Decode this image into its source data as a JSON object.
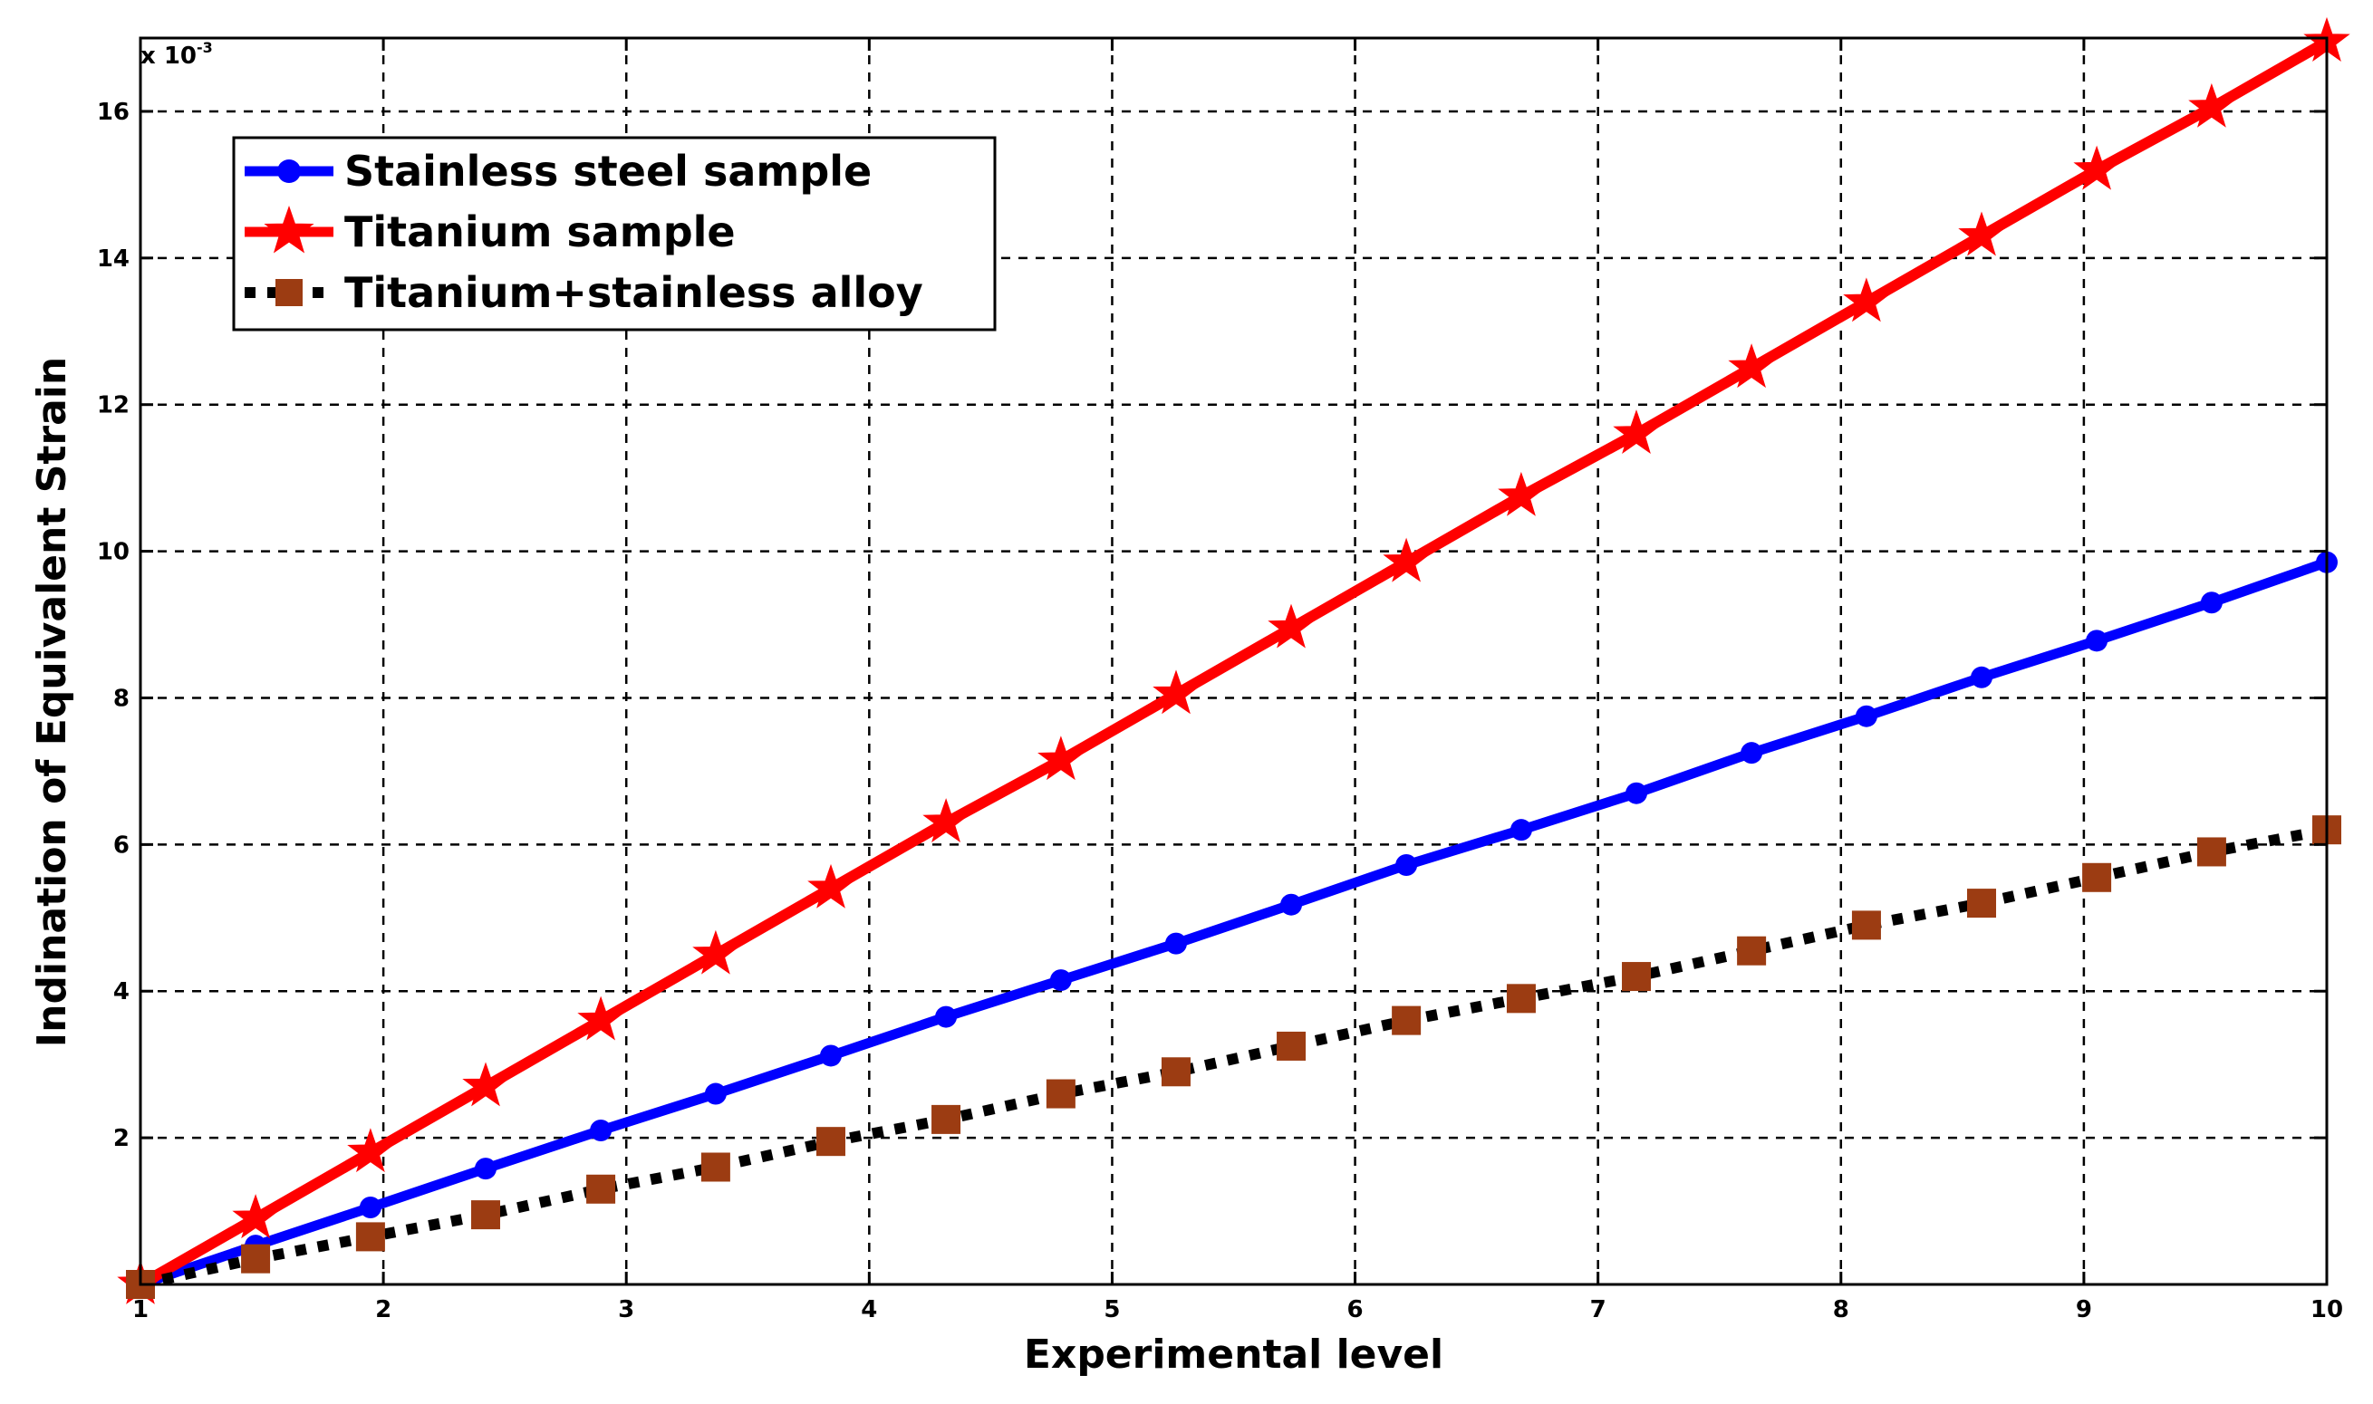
{
  "chart_data": {
    "type": "line",
    "title": "",
    "xlabel": "Experimental level",
    "ylabel": "Indination of Equivalent Strain",
    "y_multiplier": "x 10",
    "y_multiplier_exponent": "-3",
    "xlim": [
      1,
      10
    ],
    "ylim": [
      0,
      17
    ],
    "xticks": [
      1,
      2,
      3,
      4,
      5,
      6,
      7,
      8,
      9,
      10
    ],
    "yticks": [
      2,
      4,
      6,
      8,
      10,
      12,
      14,
      16
    ],
    "grid": true,
    "legend_position": "top-left",
    "series": [
      {
        "name": "Stainless steel sample",
        "color": "#0000ff",
        "marker": "circle",
        "line_style": "solid",
        "x": [
          1,
          1.474,
          1.947,
          2.421,
          2.895,
          3.368,
          3.842,
          4.316,
          4.789,
          5.263,
          5.737,
          6.211,
          6.684,
          7.158,
          7.632,
          8.105,
          8.579,
          9.053,
          9.526,
          10
        ],
        "y": [
          0,
          0.53,
          1.05,
          1.58,
          2.1,
          2.6,
          3.12,
          3.65,
          4.15,
          4.65,
          5.18,
          5.72,
          6.2,
          6.7,
          7.25,
          7.75,
          8.28,
          8.78,
          9.3,
          9.85
        ]
      },
      {
        "name": "Titanium sample",
        "color": "#ff0000",
        "marker": "star",
        "line_style": "solid",
        "x": [
          1,
          1.474,
          1.947,
          2.421,
          2.895,
          3.368,
          3.842,
          4.316,
          4.789,
          5.263,
          5.737,
          6.211,
          6.684,
          7.158,
          7.632,
          8.105,
          8.579,
          9.053,
          9.526,
          10
        ],
        "y": [
          0,
          0.9,
          1.8,
          2.7,
          3.6,
          4.5,
          5.4,
          6.3,
          7.15,
          8.05,
          8.95,
          9.85,
          10.75,
          11.6,
          12.5,
          13.4,
          14.3,
          15.2,
          16.05,
          16.95
        ]
      },
      {
        "name": "Titanium+stainless alloy",
        "color": "#9c3c12",
        "marker": "square",
        "line_style": "dotted",
        "line_color": "#000000",
        "x": [
          1,
          1.474,
          1.947,
          2.421,
          2.895,
          3.368,
          3.842,
          4.316,
          4.789,
          5.263,
          5.737,
          6.211,
          6.684,
          7.158,
          7.632,
          8.105,
          8.579,
          9.053,
          9.526,
          10
        ],
        "y": [
          0,
          0.35,
          0.65,
          0.95,
          1.3,
          1.6,
          1.95,
          2.25,
          2.6,
          2.9,
          3.25,
          3.6,
          3.9,
          4.2,
          4.55,
          4.9,
          5.2,
          5.55,
          5.9,
          6.2
        ]
      }
    ]
  }
}
